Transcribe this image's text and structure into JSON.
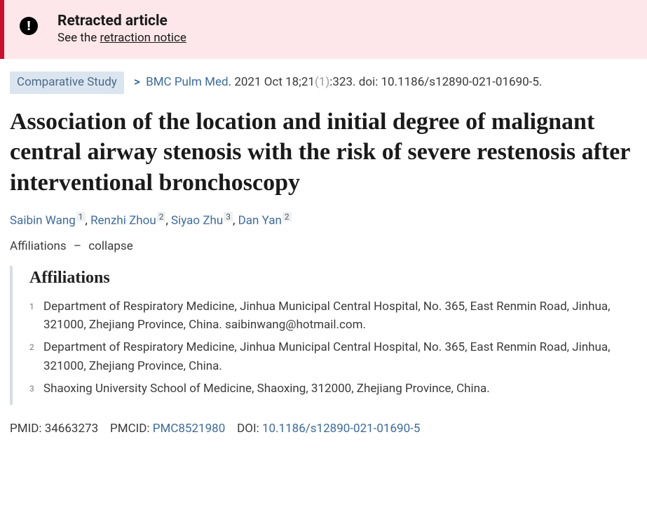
{
  "banner": {
    "title": "Retracted article",
    "sub_prefix": "See the ",
    "link_text": "retraction notice"
  },
  "meta": {
    "pub_type": "Comparative Study",
    "journal": "BMC Pulm Med",
    "journal_suffix": ".",
    "date_prefix": " 2021 Oct 18;21",
    "issue_dim": "(1)",
    "rest": ":323. doi: 10.1186/s12890-021-01690-5."
  },
  "title": "Association of the location and initial degree of malignant central airway stenosis with the risk of severe restenosis after interventional bronchoscopy",
  "authors": [
    {
      "name": "Saibin Wang",
      "sup": "1"
    },
    {
      "name": "Renzhi Zhou",
      "sup": "2"
    },
    {
      "name": "Siyao Zhu",
      "sup": "3"
    },
    {
      "name": "Dan Yan",
      "sup": "2"
    }
  ],
  "aff_toggle": {
    "label": "Affiliations",
    "symbol": "–",
    "action": "collapse"
  },
  "aff_heading": "Affiliations",
  "affiliations": [
    {
      "num": "1",
      "text": "Department of Respiratory Medicine, Jinhua Municipal Central Hospital, No. 365, East Renmin Road, Jinhua, 321000, Zhejiang Province, China. saibinwang@hotmail.com."
    },
    {
      "num": "2",
      "text": "Department of Respiratory Medicine, Jinhua Municipal Central Hospital, No. 365, East Renmin Road, Jinhua, 321000, Zhejiang Province, China."
    },
    {
      "num": "3",
      "text": "Shaoxing University School of Medicine, Shaoxing, 312000, Zhejiang Province, China."
    }
  ],
  "ids": {
    "pmid_label": "PMID:",
    "pmid": "34663273",
    "pmcid_label": "PMCID:",
    "pmcid": "PMC8521980",
    "doi_label": "DOI:",
    "doi": "10.1186/s12890-021-01690-5"
  }
}
